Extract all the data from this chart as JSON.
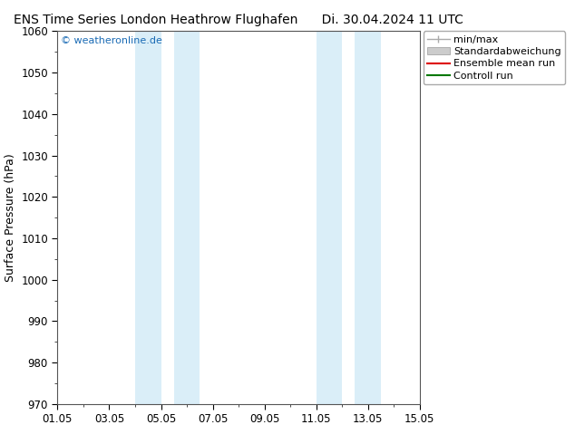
{
  "title": "ENS Time Series London Heathrow Flughafen      Di. 30.04.2024 11 UTC",
  "ylabel": "Surface Pressure (hPa)",
  "ylim": [
    970,
    1060
  ],
  "yticks": [
    970,
    980,
    990,
    1000,
    1010,
    1020,
    1030,
    1040,
    1050,
    1060
  ],
  "xlim": [
    0,
    14
  ],
  "xtick_labels": [
    "01.05",
    "03.05",
    "05.05",
    "07.05",
    "09.05",
    "11.05",
    "13.05",
    "15.05"
  ],
  "xtick_positions": [
    0,
    2,
    4,
    6,
    8,
    10,
    12,
    14
  ],
  "shaded_bands": [
    {
      "xstart": 3.0,
      "xend": 4.0,
      "color": "#daeef8"
    },
    {
      "xstart": 4.5,
      "xend": 5.5,
      "color": "#daeef8"
    },
    {
      "xstart": 10.0,
      "xend": 11.0,
      "color": "#daeef8"
    },
    {
      "xstart": 11.5,
      "xend": 12.5,
      "color": "#daeef8"
    }
  ],
  "watermark_text": "© weatheronline.de",
  "watermark_color": "#1a6bb5",
  "background_color": "#ffffff",
  "plot_bg_color": "#ffffff",
  "title_fontsize": 10,
  "tick_fontsize": 8.5,
  "ylabel_fontsize": 9,
  "legend_fontsize": 8
}
